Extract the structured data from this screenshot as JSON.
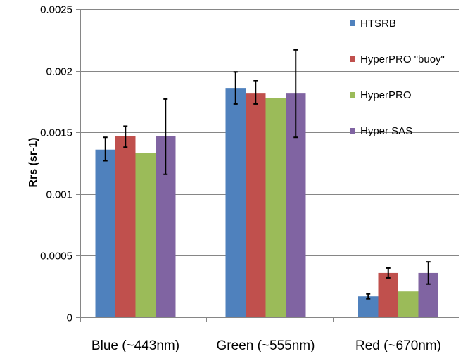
{
  "chart_data": {
    "type": "bar",
    "title": "",
    "xlabel": "",
    "ylabel": "Rrs (sr-1)",
    "ylim": [
      0,
      0.0025
    ],
    "yticks": [
      "0",
      "0.0005",
      "0.001",
      "0.0015",
      "0.002",
      "0.0025"
    ],
    "ytick_values": [
      0,
      0.0005,
      0.001,
      0.0015,
      0.002,
      0.0025
    ],
    "grid": true,
    "legend_position": "top-right",
    "categories": [
      "Blue (~443nm)",
      "Green (~555nm)",
      "Red (~670nm)"
    ],
    "series": [
      {
        "name": "HTSRB",
        "color": "#4f81bd",
        "values": [
          0.00136,
          0.00186,
          0.00017
        ],
        "err_low": [
          0.00127,
          0.00173,
          0.00015
        ],
        "err_high": [
          0.00146,
          0.00199,
          0.00019
        ]
      },
      {
        "name": "HyperPRO \"buoy\"",
        "color": "#c0504d",
        "values": [
          0.00147,
          0.00182,
          0.00036
        ],
        "err_low": [
          0.00138,
          0.00173,
          0.00032
        ],
        "err_high": [
          0.00155,
          0.00192,
          0.0004
        ]
      },
      {
        "name": "HyperPRO",
        "color": "#9bbb59",
        "values": [
          0.00133,
          0.00178,
          0.00021
        ],
        "err_low": null,
        "err_high": null
      },
      {
        "name": "Hyper SAS",
        "color": "#8064a2",
        "values": [
          0.00147,
          0.00182,
          0.00036
        ],
        "err_low": [
          0.00116,
          0.00146,
          0.00027
        ],
        "err_high": [
          0.00177,
          0.00217,
          0.00045
        ]
      }
    ],
    "colors": {
      "gridline": "#868686",
      "axis": "#868686",
      "errorbar": "#000000"
    }
  }
}
